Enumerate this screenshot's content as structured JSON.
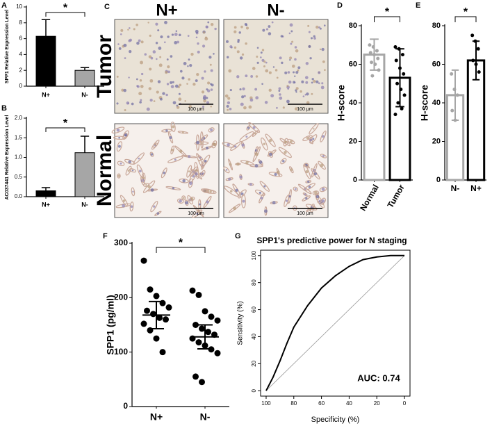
{
  "chart_data": [
    {
      "type": "bar",
      "panel": "A",
      "ylabel": "SPP1 Relative Expression Level",
      "categories": [
        "N+",
        "N-"
      ],
      "values": [
        6.3,
        2.0
      ],
      "errors": [
        2.1,
        0.35
      ],
      "colors": [
        "#000000",
        "#a6a6a6"
      ],
      "bar_style": "filled",
      "error_direction": "up",
      "ylim": [
        0,
        10
      ],
      "yticks": [
        0,
        2,
        4,
        6,
        8,
        10
      ],
      "annotation": "*"
    },
    {
      "type": "bar",
      "panel": "B",
      "ylabel": "AC037441 Relative Expression Level",
      "categories": [
        "N+",
        "N-"
      ],
      "values": [
        0.15,
        1.12
      ],
      "errors": [
        0.08,
        0.42
      ],
      "colors": [
        "#000000",
        "#a6a6a6"
      ],
      "bar_style": "filled",
      "error_direction": "up",
      "ylim": [
        0,
        2
      ],
      "yticks": [
        {
          "value": 0,
          "label": "0.0"
        },
        0.5,
        {
          "value": 1,
          "label": "1.0"
        },
        1.5,
        {
          "value": 2,
          "label": "2.0"
        }
      ],
      "annotation": "*"
    },
    {
      "type": "bar",
      "panel": "D",
      "ylabel": "H-score",
      "categories": [
        "Normal",
        "Tumor"
      ],
      "values": [
        65,
        53
      ],
      "errors": [
        8,
        15
      ],
      "colors": [
        "#a6a6a6",
        "#000000"
      ],
      "bar_style": "outline",
      "error_direction": "both",
      "points": [
        [
          70,
          69,
          67,
          66,
          65,
          63,
          61,
          60,
          57,
          54
        ],
        [
          69,
          68,
          65,
          62,
          58,
          55,
          50,
          47,
          44,
          40,
          37,
          34
        ]
      ],
      "ylim": [
        0,
        80
      ],
      "yticks": [
        0,
        20,
        40,
        60,
        80
      ],
      "annotation": "*"
    },
    {
      "type": "bar",
      "panel": "E",
      "ylabel": "H-score",
      "categories": [
        "N-",
        "N+"
      ],
      "values": [
        44,
        62
      ],
      "errors": [
        13,
        10
      ],
      "colors": [
        "#a6a6a6",
        "#000000"
      ],
      "bar_style": "outline",
      "error_direction": "both",
      "points": [
        [
          55,
          47,
          44,
          36,
          31
        ],
        [
          75,
          72,
          68,
          62,
          60,
          56
        ]
      ],
      "ylim": [
        0,
        80
      ],
      "yticks": [
        0,
        20,
        40,
        60,
        80
      ],
      "annotation": "*"
    },
    {
      "type": "strip",
      "panel": "F",
      "ylabel": "SPP1 (pg/ml)",
      "categories": [
        "N+",
        "N-"
      ],
      "points": [
        [
          268,
          215,
          203,
          190,
          182,
          176,
          170,
          163,
          160,
          152,
          140,
          125,
          100
        ],
        [
          213,
          205,
          175,
          165,
          158,
          150,
          143,
          137,
          132,
          125,
          118,
          112,
          105,
          98,
          55,
          45
        ]
      ],
      "means": [
        168,
        128
      ],
      "errors": [
        25,
        22
      ],
      "color": "#000000",
      "ylim": [
        0,
        300
      ],
      "yticks": [
        0,
        100,
        200,
        300
      ],
      "annotation": "*"
    },
    {
      "type": "line",
      "panel": "G",
      "title": "SPP1's predictive power for N staging",
      "xlabel": "Specificity (%)",
      "ylabel": "Sensitivity (%)",
      "x": [
        100,
        95,
        90,
        85,
        80,
        70,
        60,
        50,
        40,
        30,
        20,
        10,
        0
      ],
      "values": [
        0,
        10,
        22,
        35,
        47,
        63,
        76,
        85,
        92,
        97,
        99,
        100,
        100
      ],
      "color": "#000000",
      "xlim": [
        104,
        -4
      ],
      "xticks": [
        100,
        80,
        60,
        40,
        20,
        0
      ],
      "ylim": [
        -4,
        104
      ],
      "yticks": [
        0,
        20,
        40,
        60,
        80,
        100
      ],
      "annotation": "AUC: 0.74"
    }
  ],
  "micrographs": {
    "panel": "C",
    "columns": [
      "N+",
      "N-"
    ],
    "rows": [
      "Tumor",
      "Normal"
    ],
    "scale_bar": "100 μm"
  }
}
